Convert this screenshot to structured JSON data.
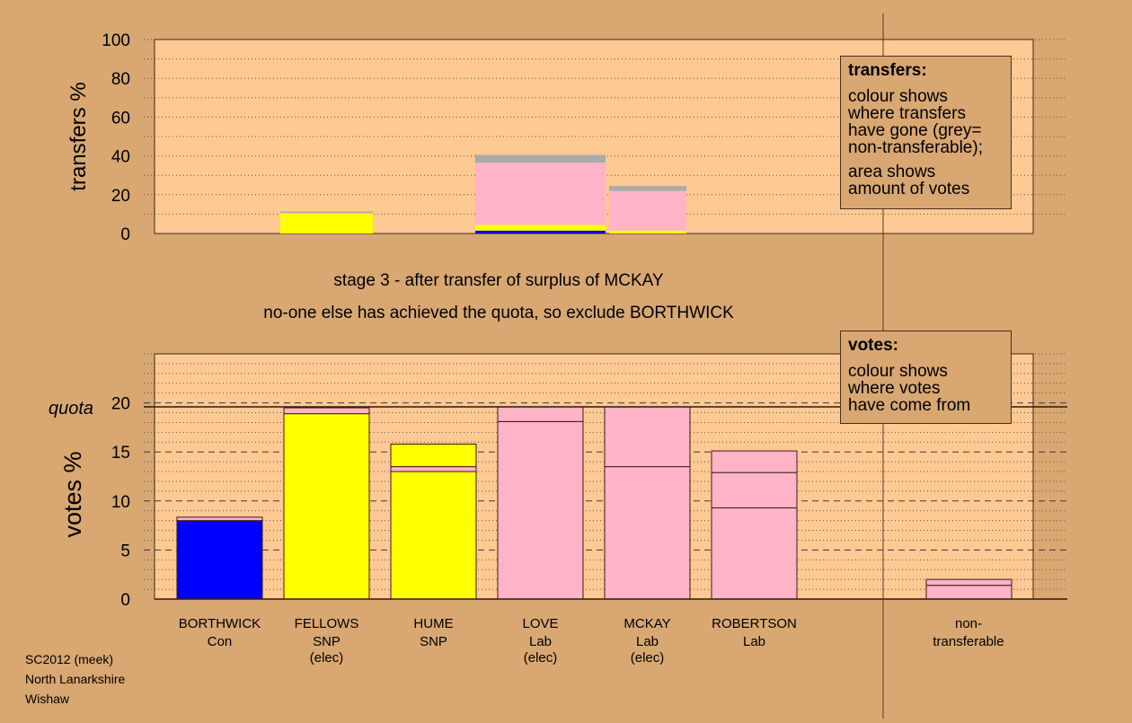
{
  "stage_text": "stage 3 - after transfer of surplus of MCKAY",
  "decision_text": "no-one else has achieved the quota, so exclude BORTHWICK",
  "footer": [
    "SC2012 (meek)",
    "North Lanarkshire",
    "Wishaw"
  ],
  "transfers_legend": {
    "title": "transfers:",
    "lines1": [
      "colour shows",
      "where transfers",
      "have gone (grey=",
      "non-transferable);"
    ],
    "lines2": [
      "area shows",
      "amount of votes"
    ]
  },
  "votes_legend": {
    "title": "votes:",
    "lines": [
      "colour shows",
      "where votes",
      "have come from"
    ]
  },
  "colors": {
    "background": "#d8a772",
    "plot_background": "#ffc993",
    "Con": "#0000ff",
    "SNP": "#ffff00",
    "Lab": "#ffb3c6",
    "non_transferable": "#aaaaaa"
  },
  "chart_data": [
    {
      "type": "bar",
      "name": "transfers",
      "ylabel": "transfers %",
      "ylim": [
        0,
        100
      ],
      "yticks": [
        0,
        20,
        40,
        60,
        80,
        100
      ],
      "bars": [
        {
          "candidate": "FELLOWS",
          "segments": [
            {
              "party": "SNP",
              "value": 10.5
            },
            {
              "party": "non_transferable",
              "value": 0.8
            }
          ]
        },
        {
          "candidate": "LOVE",
          "segments": [
            {
              "party": "Con",
              "value": 1.5
            },
            {
              "party": "SNP",
              "value": 3.0
            },
            {
              "party": "Lab",
              "value": 32.0
            },
            {
              "party": "non_transferable",
              "value": 4.0
            }
          ]
        },
        {
          "candidate": "ROBERTSON",
          "segments": [
            {
              "party": "SNP",
              "value": 1.5
            },
            {
              "party": "Lab",
              "value": 20.5
            },
            {
              "party": "non_transferable",
              "value": 2.5
            }
          ]
        }
      ]
    },
    {
      "type": "bar",
      "name": "votes",
      "ylabel": "votes %",
      "ylim": [
        0,
        25
      ],
      "yticks": [
        0,
        5,
        10,
        15,
        20
      ],
      "quota": 19.6,
      "quota_label": "quota",
      "candidates": [
        {
          "name": "BORTHWICK",
          "party": "Con",
          "status": "",
          "segments": [
            {
              "party": "Con",
              "value": 8.0
            },
            {
              "party": "Lab",
              "value": 0.35
            }
          ]
        },
        {
          "name": "FELLOWS",
          "party": "SNP",
          "status": "(elec)",
          "segments": [
            {
              "party": "SNP",
              "value": 18.9
            },
            {
              "party": "Lab",
              "value": 0.6
            }
          ]
        },
        {
          "name": "HUME",
          "party": "SNP",
          "status": "",
          "segments": [
            {
              "party": "SNP",
              "value": 13.0
            },
            {
              "party": "Lab",
              "value": 0.5
            },
            {
              "party": "SNP",
              "value": 2.3
            }
          ]
        },
        {
          "name": "LOVE",
          "party": "Lab",
          "status": "(elec)",
          "segments": [
            {
              "party": "Lab",
              "value": 18.1
            },
            {
              "party": "Lab",
              "value": 1.5
            }
          ]
        },
        {
          "name": "MCKAY",
          "party": "Lab",
          "status": "(elec)",
          "segments": [
            {
              "party": "Lab",
              "value": 13.5
            },
            {
              "party": "Lab",
              "value": 6.1
            }
          ]
        },
        {
          "name": "ROBERTSON",
          "party": "Lab",
          "status": "",
          "segments": [
            {
              "party": "Lab",
              "value": 9.3
            },
            {
              "party": "Lab",
              "value": 3.6
            },
            {
              "party": "Lab",
              "value": 2.2
            }
          ]
        }
      ],
      "non_transferable": {
        "label1": "non-",
        "label2": "transferable",
        "segments": [
          {
            "party": "Lab",
            "value": 1.4
          },
          {
            "party": "Lab",
            "value": 0.6
          }
        ]
      }
    }
  ]
}
